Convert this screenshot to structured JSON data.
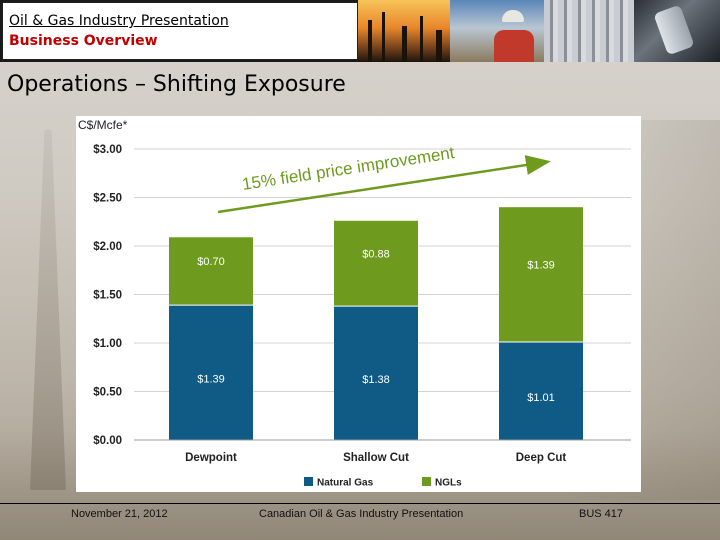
{
  "header": {
    "title": "Oil & Gas Industry Presentation",
    "subtitle": "Business Overview"
  },
  "slide": {
    "title": "Operations – Shifting Exposure"
  },
  "footer": {
    "date": "November 21, 2012",
    "center": "Canadian Oil & Gas Industry Presentation",
    "page": "BUS 417"
  },
  "chart_data": {
    "type": "bar",
    "stacked": true,
    "ylabel": "C$/Mcfe*",
    "ylim": [
      0,
      3.0
    ],
    "yticks": [
      0,
      0.5,
      1.0,
      1.5,
      2.0,
      2.5,
      3.0
    ],
    "ytick_labels": [
      "$0.00",
      "$0.50",
      "$1.00",
      "$1.50",
      "$2.00",
      "$2.50",
      "$3.00"
    ],
    "categories": [
      "Dewpoint",
      "Shallow Cut",
      "Deep Cut"
    ],
    "series": [
      {
        "name": "Natural Gas",
        "color": "#0f5b86",
        "values": [
          1.39,
          1.38,
          1.01
        ],
        "labels": [
          "$1.39",
          "$1.38",
          "$1.01"
        ]
      },
      {
        "name": "NGLs",
        "color": "#6e9b1e",
        "values": [
          0.7,
          0.88,
          1.39
        ],
        "labels": [
          "$0.70",
          "$0.88",
          "$1.39"
        ]
      }
    ],
    "annotation": "15% field price improvement",
    "annotation_color": "#6e9b1e",
    "legend_position": "bottom"
  }
}
